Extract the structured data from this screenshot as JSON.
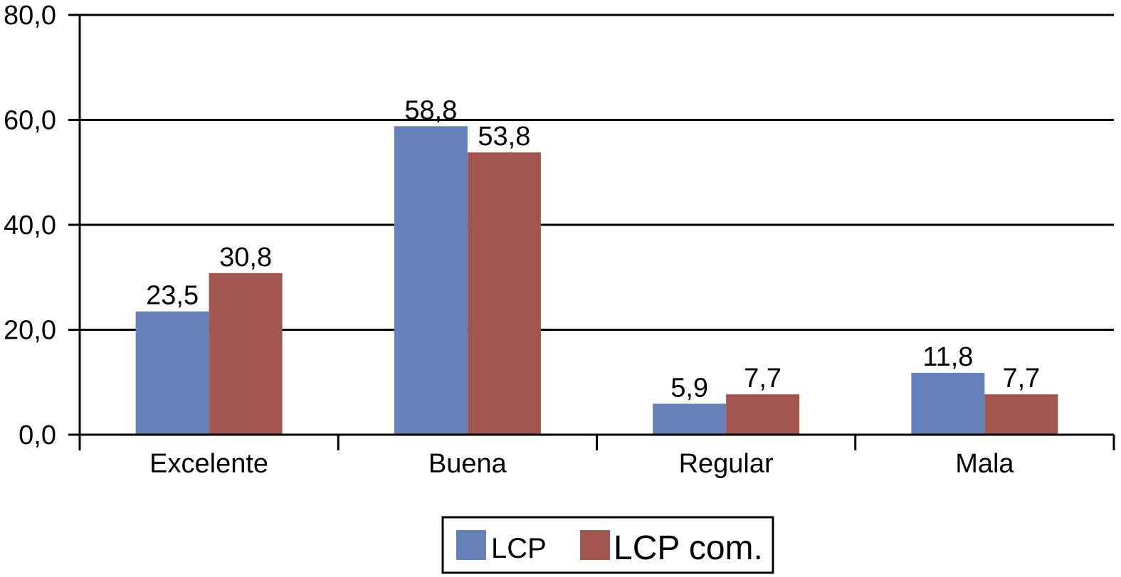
{
  "chart_data": {
    "type": "bar",
    "categories": [
      "Excelente",
      "Buena",
      "Regular",
      "Mala"
    ],
    "series": [
      {
        "name": "LCP",
        "values": [
          23.5,
          58.8,
          5.9,
          11.8
        ],
        "labels": [
          "23,5",
          "58,8",
          "5,9",
          "11,8"
        ],
        "color": "#6680ba"
      },
      {
        "name": "LCP com.",
        "values": [
          30.8,
          53.8,
          7.7,
          7.7
        ],
        "labels": [
          "30,8",
          "53,8",
          "7,7",
          "7,7"
        ],
        "color": "#a25650"
      }
    ],
    "ylim": [
      0,
      80
    ],
    "yticks": [
      0,
      20,
      40,
      60,
      80
    ],
    "ytick_labels": [
      "0,0",
      "20,0",
      "40,0",
      "60,0",
      "80,0"
    ],
    "grid": true,
    "legend_position": "bottom-center",
    "title": "",
    "xlabel": "",
    "ylabel": ""
  }
}
